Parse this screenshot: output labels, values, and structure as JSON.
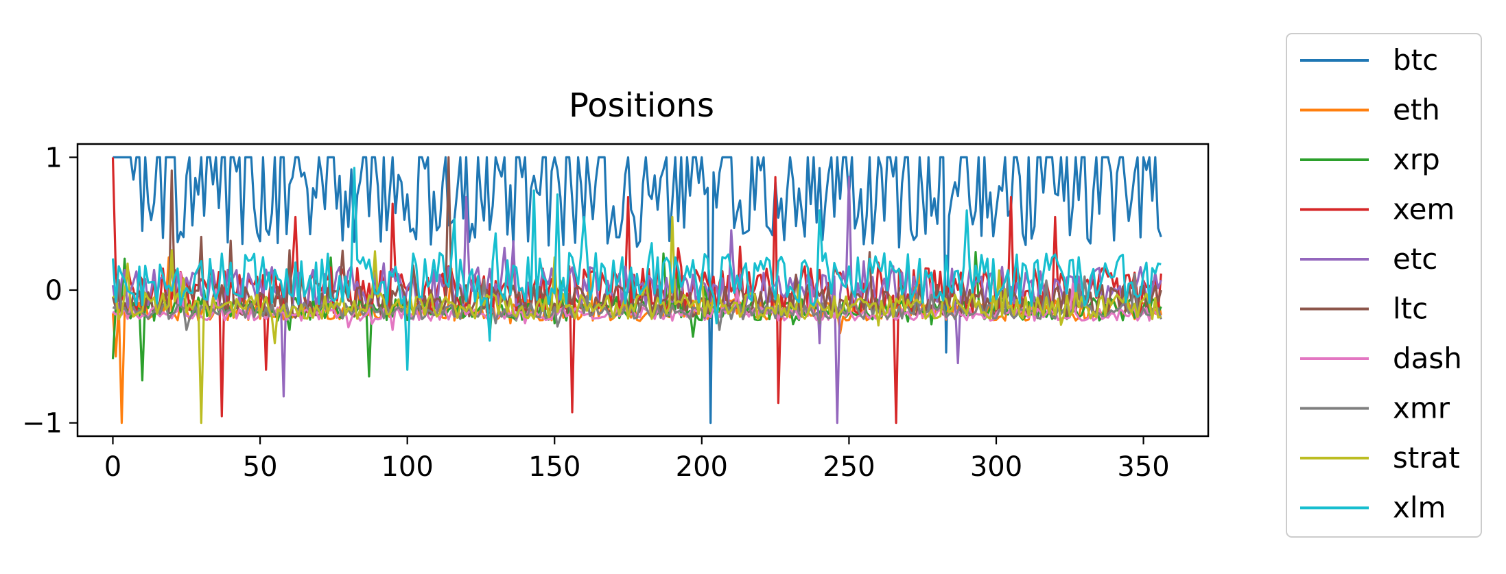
{
  "chart_data": {
    "type": "line",
    "title": "Positions",
    "xlabel": "",
    "ylabel": "",
    "xlim": [
      -12,
      372
    ],
    "ylim": [
      -1.1,
      1.1
    ],
    "x_ticks": [
      0,
      50,
      100,
      150,
      200,
      250,
      300,
      350
    ],
    "y_ticks": [
      -1,
      0,
      1
    ],
    "x_tick_labels": [
      "0",
      "50",
      "100",
      "150",
      "200",
      "250",
      "300",
      "350"
    ],
    "y_tick_labels": [
      "−1",
      "0",
      "1"
    ],
    "grid": false,
    "legend_position": "outside-right",
    "x_start": 0,
    "x_end": 356,
    "series": [
      {
        "name": "btc",
        "color": "#1f77b4",
        "baseline": 0.62,
        "amplitude": 0.3,
        "extremes": [
          [
            2,
            1.0
          ],
          [
            5,
            1.0
          ],
          [
            9,
            1.0
          ],
          [
            16,
            1.0
          ],
          [
            19,
            1.0
          ],
          [
            33,
            1.0
          ],
          [
            40,
            1.0
          ],
          [
            46,
            1.0
          ],
          [
            55,
            1.0
          ],
          [
            70,
            1.0
          ],
          [
            86,
            1.0
          ],
          [
            105,
            1.0
          ],
          [
            120,
            1.0
          ],
          [
            127,
            1.0
          ],
          [
            140,
            1.0
          ],
          [
            150,
            1.0
          ],
          [
            158,
            1.0
          ],
          [
            165,
            1.0
          ],
          [
            181,
            1.0
          ],
          [
            191,
            1.0
          ],
          [
            197,
            1.0
          ],
          [
            210,
            1.0
          ],
          [
            219,
            1.0
          ],
          [
            230,
            1.0
          ],
          [
            246,
            1.0
          ],
          [
            260,
            1.0
          ],
          [
            274,
            1.0
          ],
          [
            282,
            1.0
          ],
          [
            296,
            1.0
          ],
          [
            303,
            1.0
          ],
          [
            315,
            1.0
          ],
          [
            322,
            1.0
          ],
          [
            343,
            1.0
          ],
          [
            352,
            1.0
          ],
          [
            203,
            -1.0
          ],
          [
            283,
            -0.47
          ],
          [
            356,
            0.4
          ]
        ]
      },
      {
        "name": "eth",
        "color": "#ff7f0e",
        "baseline": -0.15,
        "amplitude": 0.08,
        "extremes": [
          [
            3,
            -1.0
          ],
          [
            1,
            -0.5
          ],
          [
            135,
            -0.25
          ],
          [
            248,
            -0.2
          ]
        ]
      },
      {
        "name": "xrp",
        "color": "#2ca02c",
        "baseline": -0.14,
        "amplitude": 0.09,
        "extremes": [
          [
            0,
            -0.52
          ],
          [
            10,
            -0.68
          ],
          [
            87,
            -0.65
          ],
          [
            60,
            -0.3
          ],
          [
            150,
            -0.25
          ]
        ]
      },
      {
        "name": "xem",
        "color": "#d62728",
        "baseline": 0.0,
        "amplitude": 0.18,
        "extremes": [
          [
            0,
            1.0
          ],
          [
            37,
            -0.95
          ],
          [
            52,
            -0.6
          ],
          [
            156,
            -0.92
          ],
          [
            226,
            -0.85
          ],
          [
            266,
            -1.0
          ],
          [
            62,
            0.55
          ],
          [
            95,
            0.65
          ],
          [
            175,
            0.7
          ],
          [
            225,
            0.85
          ],
          [
            305,
            0.7
          ],
          [
            320,
            0.55
          ]
        ]
      },
      {
        "name": "etc",
        "color": "#9467bd",
        "baseline": 0.02,
        "amplitude": 0.16,
        "extremes": [
          [
            58,
            -0.8
          ],
          [
            246,
            -1.0
          ],
          [
            287,
            -0.55
          ],
          [
            250,
            0.85
          ],
          [
            210,
            0.45
          ],
          [
            120,
            0.7
          ],
          [
            240,
            -0.4
          ]
        ]
      },
      {
        "name": "ltc",
        "color": "#8c564b",
        "baseline": -0.08,
        "amplitude": 0.12,
        "extremes": [
          [
            20,
            0.9
          ],
          [
            114,
            1.0
          ],
          [
            30,
            0.4
          ],
          [
            60,
            0.3
          ]
        ]
      },
      {
        "name": "dash",
        "color": "#e377c2",
        "baseline": -0.18,
        "amplitude": 0.05,
        "extremes": [
          [
            80,
            -0.28
          ],
          [
            95,
            -0.3
          ],
          [
            140,
            -0.25
          ]
        ]
      },
      {
        "name": "xmr",
        "color": "#7f7f7f",
        "baseline": -0.16,
        "amplitude": 0.06,
        "extremes": [
          [
            25,
            -0.3
          ],
          [
            130,
            -0.25
          ],
          [
            240,
            -0.25
          ]
        ]
      },
      {
        "name": "strat",
        "color": "#bcbd22",
        "baseline": -0.12,
        "amplitude": 0.1,
        "extremes": [
          [
            30,
            -1.0
          ],
          [
            190,
            0.55
          ],
          [
            5,
            0.2
          ],
          [
            20,
            0.3
          ],
          [
            55,
            -0.4
          ],
          [
            356,
            -0.2
          ]
        ]
      },
      {
        "name": "xlm",
        "color": "#17becf",
        "baseline": 0.08,
        "amplitude": 0.2,
        "extremes": [
          [
            82,
            0.92
          ],
          [
            100,
            -0.6
          ],
          [
            128,
            -0.38
          ],
          [
            143,
            0.75
          ],
          [
            151,
            0.72
          ],
          [
            160,
            0.55
          ],
          [
            205,
            -0.25
          ],
          [
            240,
            0.6
          ],
          [
            290,
            0.6
          ],
          [
            355,
            0.2
          ]
        ]
      }
    ]
  }
}
